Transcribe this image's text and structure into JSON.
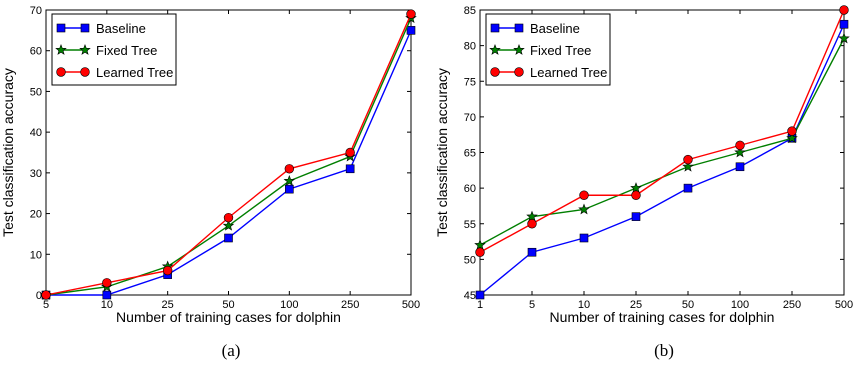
{
  "chart_data": [
    {
      "type": "line",
      "caption": "(a)",
      "categories": [
        "5",
        "10",
        "25",
        "50",
        "100",
        "250",
        "500"
      ],
      "xlabel": "Number of training cases for dolphin",
      "ylabel": "Test classification accuracy",
      "ylim": [
        0,
        70
      ],
      "yticks": [
        0,
        10,
        20,
        30,
        40,
        50,
        60,
        70
      ],
      "grid": false,
      "legend_position": "top-left",
      "series": [
        {
          "name": "Baseline",
          "color": "#0000ff",
          "marker": "square",
          "values": [
            0,
            0,
            5,
            14,
            26,
            31,
            65
          ]
        },
        {
          "name": "Fixed Tree",
          "color": "#007f00",
          "marker": "star",
          "values": [
            0,
            2,
            7,
            17,
            28,
            34,
            68
          ]
        },
        {
          "name": "Learned Tree",
          "color": "#ff0000",
          "marker": "circle",
          "values": [
            0,
            3,
            6,
            19,
            31,
            35,
            69
          ]
        }
      ]
    },
    {
      "type": "line",
      "caption": "(b)",
      "categories": [
        "1",
        "5",
        "10",
        "25",
        "50",
        "100",
        "250",
        "500"
      ],
      "xlabel": "Number of training cases for dolphin",
      "ylabel": "Test classification accuracy",
      "ylim": [
        45,
        85
      ],
      "yticks": [
        45,
        50,
        55,
        60,
        65,
        70,
        75,
        80,
        85
      ],
      "grid": false,
      "legend_position": "top-left",
      "series": [
        {
          "name": "Baseline",
          "color": "#0000ff",
          "marker": "square",
          "values": [
            45,
            51,
            53,
            56,
            60,
            63,
            67,
            83
          ]
        },
        {
          "name": "Fixed Tree",
          "color": "#007f00",
          "marker": "star",
          "values": [
            52,
            56,
            57,
            60,
            63,
            65,
            67,
            81
          ]
        },
        {
          "name": "Learned Tree",
          "color": "#ff0000",
          "marker": "circle",
          "values": [
            51,
            55,
            59,
            59,
            64,
            66,
            68,
            85
          ]
        }
      ]
    }
  ]
}
